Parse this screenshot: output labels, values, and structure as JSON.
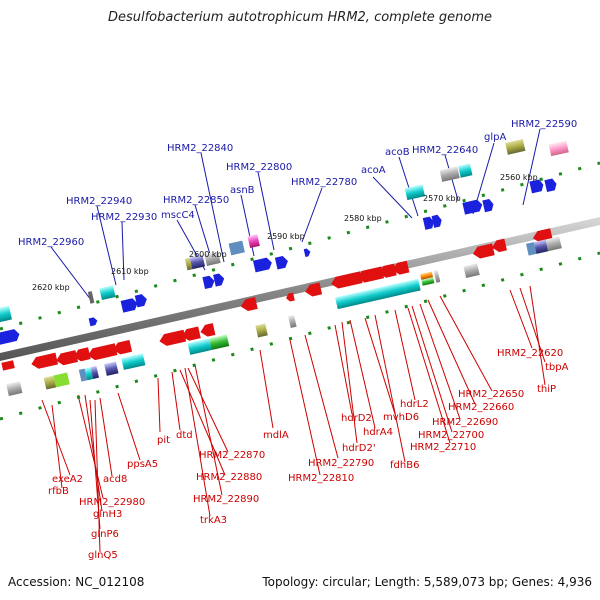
{
  "title": "Desulfobacterium autotrophicum HRM2, complete genome",
  "footer": {
    "accession": "Accession: NC_012108",
    "summary": "Topology: circular; Length: 5,589,073 bp; Genes: 4,936"
  },
  "colors": {
    "backbone": "#8a8a8a",
    "top_label": "#1a1aa8",
    "bottom_label": "#cc0000",
    "ruler_dot": "#1a8a1a"
  },
  "ruler": [
    "2560 kbp",
    "2570 kbp",
    "2580 kbp",
    "2590 kbp",
    "2600 kbp",
    "2610 kbp",
    "2620 kbp"
  ],
  "top_labels": [
    "HRM2_22590",
    "glpA",
    "HRM2_22640",
    "acoB",
    "acoA",
    "HRM2_22780",
    "HRM2_22800",
    "asnB",
    "HRM2_22840",
    "HRM2_22850",
    "mscC4",
    "HRM2_22930",
    "HRM2_22940",
    "HRM2_22960"
  ],
  "bottom_labels": [
    "exeA2",
    "rfbB",
    "HRM2_22980",
    "glnH3",
    "glnP6",
    "glnQ5",
    "acd8",
    "ppsA5",
    "pit",
    "dtd",
    "HRM2_22870",
    "HRM2_22880",
    "HRM2_22890",
    "trkA3",
    "mdlA",
    "HRM2_22790",
    "HRM2_22810",
    "hdrD2",
    "hdrD2'",
    "hdrA4",
    "mvhD6",
    "fdhB6",
    "hdrL2",
    "HRM2_22710",
    "HRM2_22700",
    "HRM2_22690",
    "HRM2_22660",
    "HRM2_22650",
    "HRM2_22620",
    "tbpA",
    "thiP"
  ]
}
